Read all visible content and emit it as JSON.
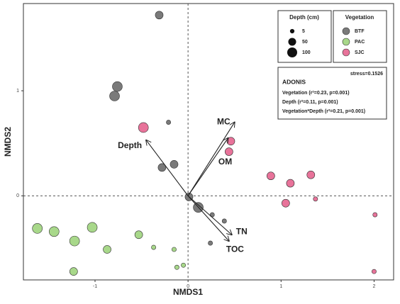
{
  "chart_data": {
    "type": "scatter",
    "x_label": "NMDS1",
    "y_label": "NMDS2",
    "xlim": [
      -1.77,
      2.21
    ],
    "ylim": [
      -0.8,
      1.83
    ],
    "xticks": [
      -1,
      0,
      1,
      2
    ],
    "yticks": [
      0,
      1
    ],
    "series": [
      {
        "name": "BTF",
        "color": "#7a7a7a",
        "x": [
          -0.31,
          -0.76,
          -0.79,
          -0.21,
          -0.28,
          -0.15,
          0.11,
          0.01,
          0.26,
          0.39,
          0.24
        ],
        "values": [
          1.72,
          1.04,
          0.95,
          0.7,
          0.27,
          0.3,
          -0.11,
          -0.01,
          -0.18,
          -0.24,
          -0.45
        ],
        "sizes": [
          50,
          100,
          100,
          5,
          50,
          50,
          100,
          50,
          5,
          5,
          5
        ]
      },
      {
        "name": "PAC",
        "color": "#a8d88a",
        "x": [
          -1.62,
          -1.44,
          -1.03,
          -1.22,
          -0.87,
          -0.53,
          -0.37,
          -0.15,
          -1.23,
          -0.12,
          -0.05
        ],
        "values": [
          -0.31,
          -0.34,
          -0.3,
          -0.43,
          -0.51,
          -0.37,
          -0.49,
          -0.51,
          -0.72,
          -0.68,
          -0.66
        ],
        "sizes": [
          100,
          100,
          100,
          100,
          50,
          50,
          5,
          5,
          50,
          5,
          5
        ]
      },
      {
        "name": "SJC",
        "color": "#e8739a",
        "x": [
          -0.48,
          0.46,
          0.44,
          0.89,
          1.1,
          1.32,
          1.05,
          1.37,
          2.01,
          2.0
        ],
        "values": [
          0.65,
          0.52,
          0.42,
          0.19,
          0.12,
          0.2,
          -0.07,
          -0.03,
          -0.18,
          -0.72
        ],
        "sizes": [
          100,
          50,
          50,
          50,
          50,
          50,
          50,
          5,
          5,
          5
        ]
      }
    ],
    "vectors": [
      {
        "label": "Depth",
        "x": -0.45,
        "y": 0.53
      },
      {
        "label": "MC",
        "x": 0.5,
        "y": 0.7
      },
      {
        "label": "OM",
        "x": 0.43,
        "y": 0.55
      },
      {
        "label": "TN",
        "x": 0.47,
        "y": -0.37
      },
      {
        "label": "TOC",
        "x": 0.44,
        "y": -0.43
      }
    ],
    "size_legend": {
      "title": "Depth (cm)",
      "values": [
        5,
        50,
        100
      ]
    },
    "legend_title": "Vegetation",
    "stress": "stress=0.1526",
    "adonis": {
      "title": "ADONIS",
      "lines": [
        "Vegetation (r²=0.23, p=0.001)",
        "Depth (r²=0.11, p=0.001)",
        "Vegetation*Depth (r²=0.21, p=0.001)"
      ]
    }
  }
}
